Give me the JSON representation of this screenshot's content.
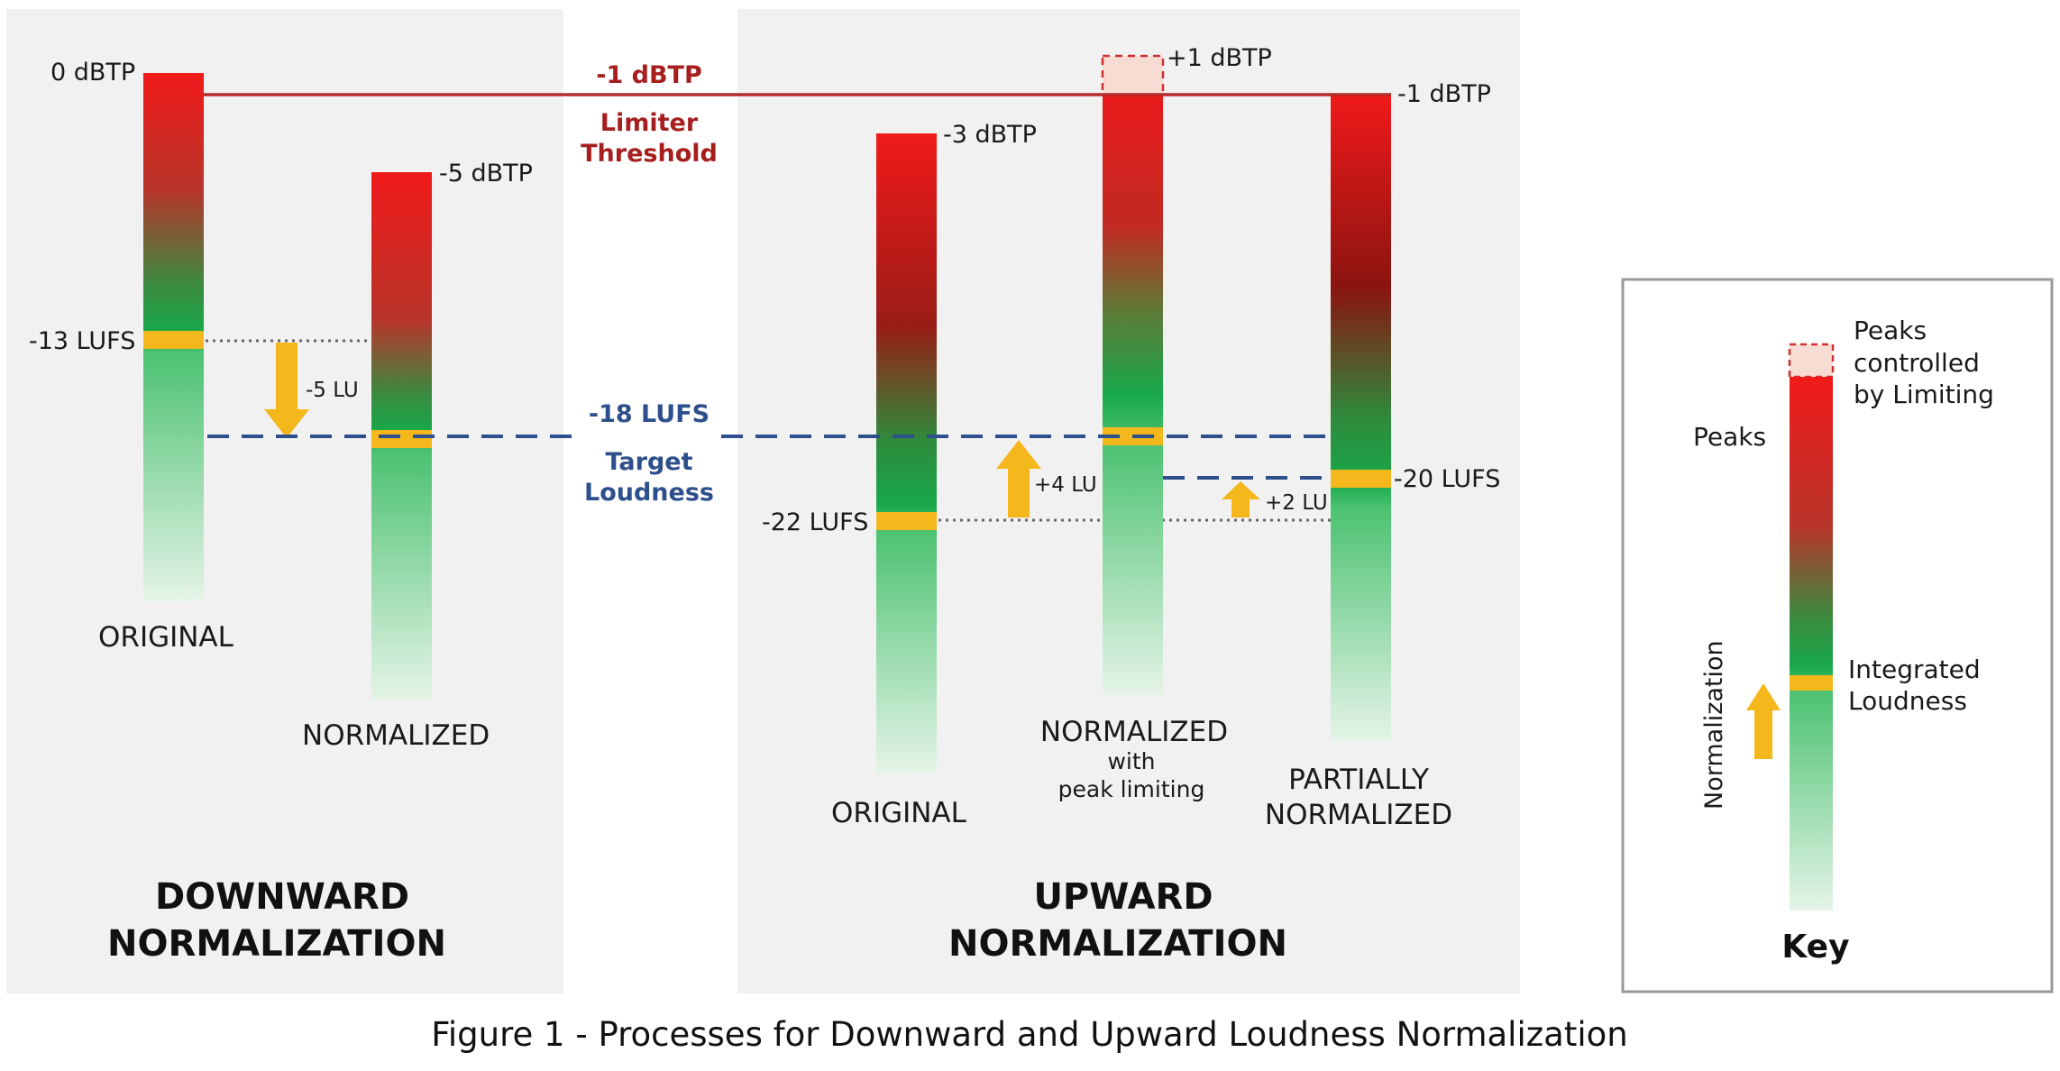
{
  "lines": {
    "limiter_value": "-1 dBTP",
    "limiter_label_1": "Limiter",
    "limiter_label_2": "Threshold",
    "target_value": "-18 LUFS",
    "target_label_1": "Target",
    "target_label_2": "Loudness"
  },
  "downward": {
    "title_1": "DOWNWARD",
    "title_2": "NORMALIZATION",
    "original": {
      "label": "ORIGINAL",
      "peak": "0 dBTP",
      "loudness": "-13 LUFS"
    },
    "normalized": {
      "label": "NORMALIZED",
      "peak": "-5 dBTP"
    },
    "shift": "-5 LU"
  },
  "upward": {
    "title_1": "UPWARD",
    "title_2": "NORMALIZATION",
    "original": {
      "label": "ORIGINAL",
      "peak": "-3 dBTP",
      "loudness": "-22 LUFS"
    },
    "normalized": {
      "label_1": "NORMALIZED",
      "label_2": "with",
      "label_3": "peak limiting",
      "peak": "+1 dBTP",
      "shift": "+4 LU"
    },
    "partial": {
      "label_1": "PARTIALLY",
      "label_2": "NORMALIZED",
      "peak": "-1 dBTP",
      "loudness": "-20 LUFS",
      "shift": "+2 LU"
    }
  },
  "key": {
    "title": "Key",
    "limited_1": "Peaks",
    "limited_2": "controlled",
    "limited_3": "by Limiting",
    "peaks": "Peaks",
    "integrated_1": "Integrated",
    "integrated_2": "Loudness",
    "normalization": "Normalization"
  },
  "caption": "Figure 1 - Processes for Downward and Upward Loudness Normalization",
  "colors": {
    "panel": "#f1f1f1",
    "limiter_line": "#b52a2a",
    "target_line": "#2d4f8c",
    "loudness_band": "#f5b81c",
    "arrow": "#f5b81c"
  }
}
